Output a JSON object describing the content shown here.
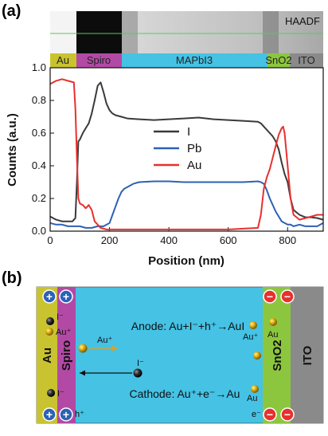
{
  "panel_a": {
    "label": "(a)",
    "image_tag": "HAADF",
    "layers": [
      {
        "name": "Au",
        "color": "#c9c330"
      },
      {
        "name": "Spiro",
        "color": "#b24aa5"
      },
      {
        "name": "MAPbI3",
        "color": "#45c2e4"
      },
      {
        "name": "SnO2",
        "color": "#8cc63f"
      },
      {
        "name": "ITO",
        "color": "#8a8a8a"
      }
    ]
  },
  "chart_data": {
    "type": "line",
    "xlabel": "Position (nm)",
    "ylabel": "Counts (a.u.)",
    "xlim": [
      0,
      920
    ],
    "ylim": [
      0,
      1.0
    ],
    "xticks": [
      0,
      200,
      400,
      600,
      800
    ],
    "yticks": [
      0.0,
      0.2,
      0.4,
      0.6,
      0.8,
      1.0
    ],
    "legend": "center",
    "series": [
      {
        "name": "I",
        "color": "#3a3a3a",
        "x": [
          0,
          20,
          40,
          60,
          75,
          85,
          90,
          95,
          100,
          110,
          120,
          130,
          140,
          150,
          160,
          170,
          180,
          190,
          200,
          210,
          220,
          240,
          260,
          300,
          350,
          400,
          450,
          500,
          550,
          600,
          650,
          700,
          710,
          720,
          730,
          740,
          750,
          760,
          770,
          780,
          790,
          800,
          810,
          820,
          840,
          860,
          880,
          900,
          920
        ],
        "y": [
          0.09,
          0.07,
          0.06,
          0.06,
          0.06,
          0.08,
          0.3,
          0.55,
          0.56,
          0.6,
          0.63,
          0.66,
          0.72,
          0.8,
          0.89,
          0.91,
          0.85,
          0.78,
          0.74,
          0.72,
          0.71,
          0.7,
          0.69,
          0.685,
          0.68,
          0.685,
          0.69,
          0.695,
          0.685,
          0.68,
          0.675,
          0.67,
          0.66,
          0.64,
          0.62,
          0.6,
          0.58,
          0.55,
          0.5,
          0.42,
          0.35,
          0.3,
          0.2,
          0.13,
          0.1,
          0.085,
          0.085,
          0.08,
          0.07
        ]
      },
      {
        "name": "Pb",
        "color": "#2c62b5",
        "x": [
          0,
          20,
          40,
          60,
          80,
          100,
          120,
          140,
          160,
          180,
          200,
          210,
          220,
          230,
          240,
          250,
          260,
          280,
          300,
          350,
          400,
          450,
          500,
          550,
          600,
          650,
          700,
          710,
          720,
          730,
          740,
          750,
          760,
          770,
          780,
          790,
          800,
          810,
          820,
          840,
          860,
          880,
          900,
          920
        ],
        "y": [
          0.05,
          0.04,
          0.04,
          0.03,
          0.03,
          0.03,
          0.02,
          0.02,
          0.03,
          0.03,
          0.05,
          0.1,
          0.15,
          0.2,
          0.24,
          0.26,
          0.27,
          0.29,
          0.3,
          0.305,
          0.305,
          0.3,
          0.3,
          0.3,
          0.3,
          0.3,
          0.305,
          0.3,
          0.29,
          0.25,
          0.2,
          0.16,
          0.12,
          0.09,
          0.06,
          0.05,
          0.04,
          0.04,
          0.03,
          0.04,
          0.03,
          0.03,
          0.03,
          0.05
        ]
      },
      {
        "name": "Au",
        "color": "#e8302e",
        "x": [
          0,
          10,
          20,
          40,
          60,
          80,
          85,
          90,
          95,
          100,
          110,
          120,
          130,
          140,
          150,
          160,
          170,
          180,
          190,
          200,
          220,
          260,
          300,
          400,
          500,
          600,
          700,
          710,
          720,
          730,
          740,
          750,
          760,
          770,
          780,
          785,
          790,
          800,
          810,
          820,
          840,
          860,
          880,
          900,
          920
        ],
        "y": [
          0.9,
          0.91,
          0.92,
          0.93,
          0.92,
          0.91,
          0.75,
          0.45,
          0.2,
          0.17,
          0.16,
          0.14,
          0.16,
          0.13,
          0.06,
          0.04,
          0.02,
          0.015,
          0.01,
          0.01,
          0.01,
          0.01,
          0.01,
          0.01,
          0.01,
          0.01,
          0.02,
          0.1,
          0.26,
          0.33,
          0.38,
          0.45,
          0.52,
          0.59,
          0.63,
          0.64,
          0.6,
          0.4,
          0.2,
          0.1,
          0.07,
          0.08,
          0.09,
          0.1,
          0.1
        ]
      }
    ]
  },
  "panel_b": {
    "label": "(b)",
    "layer_labels": {
      "au": "Au",
      "spiro": "Spiro",
      "sno2": "SnO2",
      "ito": "ITO"
    },
    "anode_reaction": "Anode: Au+I⁻+h⁺→AuI",
    "cathode_reaction": "Cathode: Au⁺+e⁻→Au",
    "ions": {
      "iodide": "I⁻",
      "gold_cation": "Au⁺",
      "gold": "Au",
      "hole": "h⁺",
      "electron": "e⁻"
    },
    "charge_symbols": {
      "plus": "+",
      "minus": "−"
    }
  }
}
